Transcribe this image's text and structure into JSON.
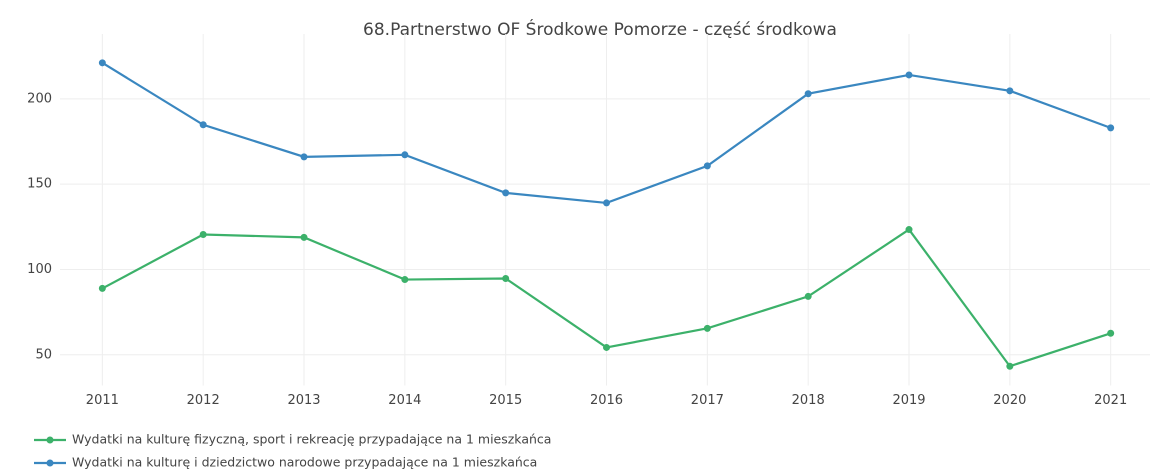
{
  "chart_data": {
    "type": "line",
    "title": "68.Partnerstwo OF Środkowe Pomorze - część środkowa",
    "x": [
      2011,
      2012,
      2013,
      2014,
      2015,
      2016,
      2017,
      2018,
      2019,
      2020,
      2021
    ],
    "xlim": [
      2010.58,
      2021.39
    ],
    "xticks": [
      2011,
      2012,
      2013,
      2014,
      2015,
      2016,
      2017,
      2018,
      2019,
      2020,
      2021
    ],
    "ylim": [
      32,
      238
    ],
    "yticks": [
      50,
      100,
      150,
      200
    ],
    "grid": true,
    "legend": "bottom-left",
    "series": [
      {
        "name": "Wydatki na kulturę fizyczną, sport i rekreację przypadające na 1 mieszkańca",
        "color": "#3cb16a",
        "values": [
          88.9,
          120.5,
          118.8,
          94.1,
          94.7,
          54.3,
          65.5,
          84.2,
          123.4,
          43.3,
          62.6
        ]
      },
      {
        "name": "Wydatki na kulturę i dziedzictwo narodowe przypadające na 1 mieszkańca",
        "color": "#3a87c0",
        "values": [
          221.1,
          184.8,
          166,
          167.2,
          144.9,
          139,
          160.7,
          203,
          214,
          204.7,
          183
        ]
      }
    ]
  }
}
